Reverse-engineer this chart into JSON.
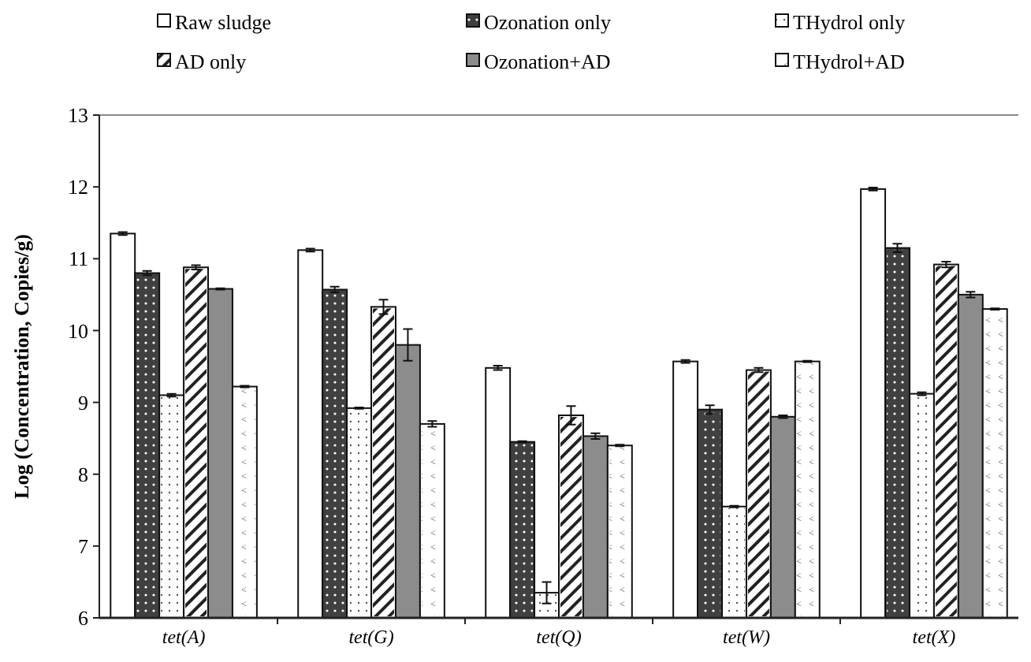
{
  "chart_data": {
    "type": "bar",
    "ylabel": "Log (Concentration, Copies/g)",
    "categories": [
      "tet(A)",
      "tet(G)",
      "tet(Q)",
      "tet(W)",
      "tet(X)"
    ],
    "ylim": [
      6,
      13
    ],
    "yticks": [
      6,
      7,
      8,
      9,
      10,
      11,
      12,
      13
    ],
    "grid": false,
    "legend": "top",
    "series": [
      {
        "name": "Raw sludge",
        "color": "#ffffff",
        "values": [
          11.35,
          11.12,
          9.48,
          9.57,
          11.97
        ],
        "errors": [
          0.02,
          0.02,
          0.03,
          0.02,
          0.02
        ]
      },
      {
        "name": "Ozonation only",
        "color": "#404040",
        "values": [
          10.8,
          10.57,
          8.45,
          8.9,
          11.15
        ],
        "errors": [
          0.03,
          0.04,
          0.01,
          0.06,
          0.06
        ]
      },
      {
        "name": "THydrol only",
        "color": "#ffffff",
        "values": [
          9.1,
          8.92,
          6.35,
          7.55,
          9.12
        ],
        "errors": [
          0.02,
          0.01,
          0.15,
          0.01,
          0.02
        ]
      },
      {
        "name": "AD only",
        "color": "#ffffff",
        "values": [
          10.88,
          10.33,
          8.82,
          9.45,
          10.92
        ],
        "errors": [
          0.03,
          0.1,
          0.13,
          0.03,
          0.04
        ]
      },
      {
        "name": "Ozonation+AD",
        "color": "#8c8c8c",
        "values": [
          10.58,
          9.8,
          8.53,
          8.8,
          10.5
        ],
        "errors": [
          0.01,
          0.22,
          0.04,
          0.02,
          0.04
        ]
      },
      {
        "name": "THydrol+AD",
        "color": "#ffffff",
        "values": [
          9.22,
          8.7,
          8.4,
          9.57,
          10.3
        ],
        "errors": [
          0.01,
          0.04,
          0.01,
          0.01,
          0.01
        ]
      }
    ]
  }
}
